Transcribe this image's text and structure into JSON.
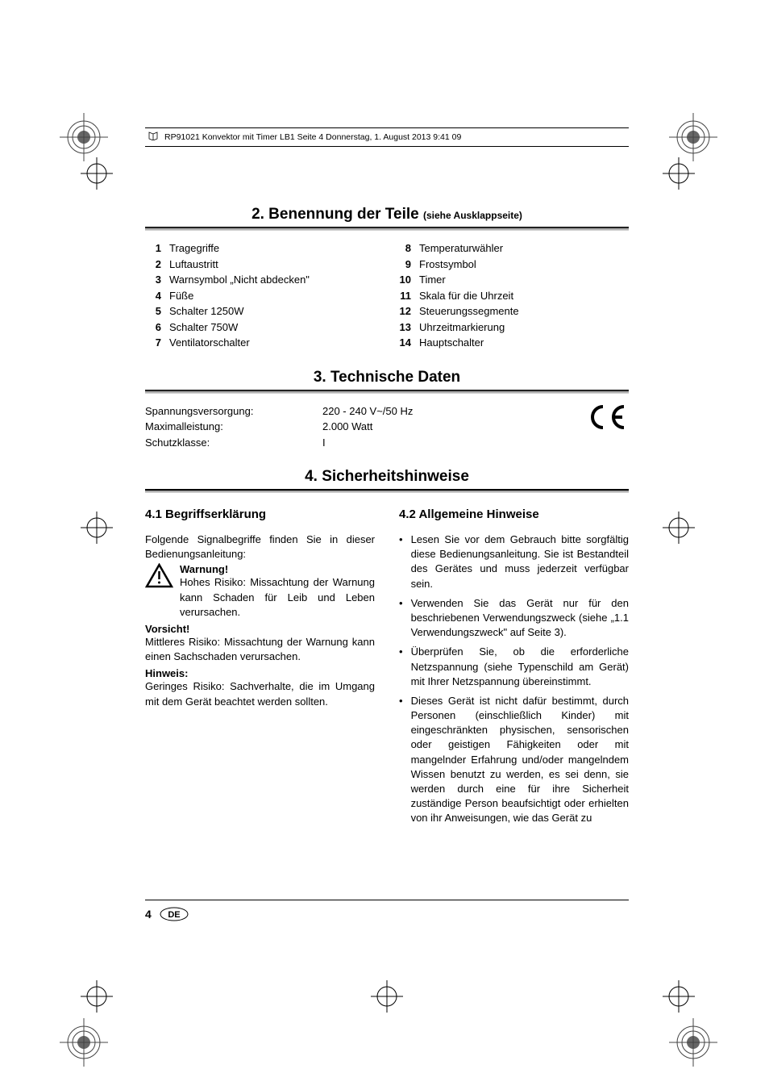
{
  "header": {
    "text": "RP91021 Konvektor mit Timer LB1  Seite 4  Donnerstag, 1. August 2013  9:41 09"
  },
  "section2": {
    "title": "2. Benennung der Teile",
    "subtitle": "(siehe Ausklappseite)",
    "parts_left": [
      {
        "num": "1",
        "label": "Tragegriffe"
      },
      {
        "num": "2",
        "label": "Luftaustritt"
      },
      {
        "num": "3",
        "label": "Warnsymbol „Nicht abdecken\""
      },
      {
        "num": "4",
        "label": "Füße"
      },
      {
        "num": "5",
        "label": "Schalter 1250W"
      },
      {
        "num": "6",
        "label": "Schalter 750W"
      },
      {
        "num": "7",
        "label": "Ventilatorschalter"
      }
    ],
    "parts_right": [
      {
        "num": "8",
        "label": "Temperaturwähler"
      },
      {
        "num": "9",
        "label": "Frostsymbol"
      },
      {
        "num": "10",
        "label": "Timer"
      },
      {
        "num": "11",
        "label": "Skala für die Uhrzeit"
      },
      {
        "num": "12",
        "label": "Steuerungssegmente"
      },
      {
        "num": "13",
        "label": "Uhrzeitmarkierung"
      },
      {
        "num": "14",
        "label": "Hauptschalter"
      }
    ]
  },
  "section3": {
    "title": "3. Technische Daten",
    "specs": [
      {
        "label": "Spannungsversorgung:",
        "value": "220 - 240 V~/50 Hz"
      },
      {
        "label": "Maximalleistung:",
        "value": "2.000 Watt"
      },
      {
        "label": "Schutzklasse:",
        "value": "I"
      }
    ]
  },
  "section4": {
    "title": "4. Sicherheitshinweise",
    "sub1": {
      "title": "4.1 Begriffserklärung",
      "intro": "Folgende Signalbegriffe finden Sie in dieser Bedienungsanleitung:",
      "warnung_label": "Warnung!",
      "warnung_text": "Hohes Risiko: Missachtung der Warnung kann Schaden für Leib und Leben verursachen.",
      "vorsicht_label": "Vorsicht!",
      "vorsicht_text": "Mittleres Risiko: Missachtung der Warnung kann einen Sachschaden verursachen.",
      "hinweis_label": "Hinweis:",
      "hinweis_text": "Geringes Risiko: Sachverhalte, die im Umgang mit dem Gerät beachtet werden sollten."
    },
    "sub2": {
      "title": "4.2 Allgemeine Hinweise",
      "bullets": [
        "Lesen Sie vor dem Gebrauch bitte sorgfältig diese Bedienungsanleitung. Sie ist Bestandteil des Gerätes und muss jederzeit verfügbar sein.",
        "Verwenden Sie das Gerät nur für den beschriebenen Verwendungszweck (siehe „1.1 Verwendungszweck\" auf Seite 3).",
        "Überprüfen Sie, ob die erforderliche Netzspannung (siehe Typenschild am Gerät) mit Ihrer Netzspannung übereinstimmt.",
        "Dieses Gerät ist nicht dafür bestimmt, durch Personen (einschließlich Kinder) mit eingeschränkten physischen, sensorischen oder geistigen Fähigkeiten oder mit mangelnder Erfahrung und/oder mangelndem Wissen benutzt zu werden, es sei denn, sie werden durch eine für ihre Sicherheit zuständige Person beaufsichtigt oder erhielten von ihr Anweisungen, wie das Gerät zu"
      ]
    }
  },
  "footer": {
    "page": "4",
    "lang": "DE"
  },
  "styling": {
    "page_bg": "#ffffff",
    "text_color": "#000000",
    "title_fontsize": 19,
    "body_fontsize": 13,
    "subsection_fontsize": 15,
    "underline_gradient_dark": "#000000",
    "underline_gradient_light": "#dddddd"
  }
}
